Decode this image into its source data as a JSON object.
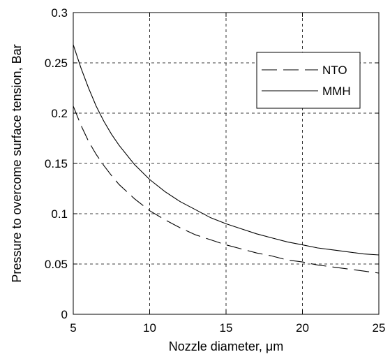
{
  "chart_data": {
    "type": "line",
    "title": "",
    "xlabel": "Nozzle diameter,  μm",
    "ylabel": "Pressure to overcome surface tension, Bar",
    "xlim": [
      5,
      25
    ],
    "ylim": [
      0,
      0.3
    ],
    "x_ticks": [
      "5",
      "10",
      "15",
      "20",
      "25"
    ],
    "y_ticks": [
      "0",
      "0.05",
      "0.1",
      "0.15",
      "0.2",
      "0.25",
      "0.3"
    ],
    "grid": true,
    "legend_position": "top-right",
    "series": [
      {
        "name": "NTO",
        "line_style": "dashed",
        "color": "#000000",
        "x": [
          5,
          5.5,
          6,
          6.5,
          7,
          7.5,
          8,
          9,
          10,
          11,
          12,
          13,
          14,
          15,
          16,
          17,
          18,
          19,
          20,
          21,
          22,
          23,
          24,
          25
        ],
        "y": [
          0.207,
          0.188,
          0.172,
          0.159,
          0.148,
          0.138,
          0.129,
          0.115,
          0.103,
          0.094,
          0.086,
          0.079,
          0.074,
          0.069,
          0.065,
          0.061,
          0.058,
          0.054,
          0.052,
          0.049,
          0.047,
          0.045,
          0.043,
          0.041
        ]
      },
      {
        "name": "MMH",
        "line_style": "solid",
        "color": "#000000",
        "x": [
          5,
          5.5,
          6,
          6.5,
          7,
          7.5,
          8,
          9,
          10,
          11,
          12,
          13,
          14,
          15,
          16,
          17,
          18,
          19,
          20,
          21,
          22,
          23,
          24,
          25
        ],
        "y": [
          0.268,
          0.245,
          0.225,
          0.207,
          0.192,
          0.179,
          0.168,
          0.149,
          0.134,
          0.122,
          0.112,
          0.104,
          0.096,
          0.09,
          0.085,
          0.08,
          0.076,
          0.072,
          0.069,
          0.066,
          0.064,
          0.062,
          0.06,
          0.059
        ]
      }
    ]
  }
}
